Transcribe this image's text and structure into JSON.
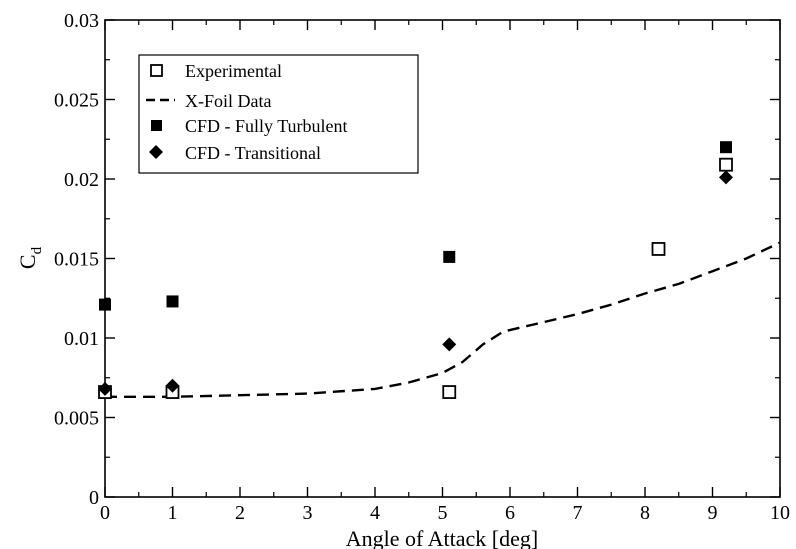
{
  "chart_data": {
    "type": "scatter",
    "title": "",
    "xlabel": "Angle of Attack [deg]",
    "ylabel": {
      "main": "C",
      "sub": "d"
    },
    "xlim": [
      0,
      10
    ],
    "ylim": [
      0,
      0.03
    ],
    "x_ticks": [
      "0",
      "1",
      "2",
      "3",
      "4",
      "5",
      "6",
      "7",
      "8",
      "9",
      "10"
    ],
    "y_ticks": [
      "0",
      "0.005",
      "0.01",
      "0.015",
      "0.02",
      "0.025",
      "0.03"
    ],
    "grid": false,
    "legend_position": "top-left",
    "series": [
      {
        "name": "Experimental",
        "marker": "open-square",
        "color": "#000000",
        "points": [
          [
            0,
            0.0066
          ],
          [
            1,
            0.0066
          ],
          [
            5.1,
            0.0066
          ],
          [
            8.2,
            0.0156
          ],
          [
            9.2,
            0.0209
          ]
        ]
      },
      {
        "name": "X-Foil Data",
        "marker": "dashed-line",
        "color": "#000000",
        "points": [
          [
            0,
            0.0063
          ],
          [
            1,
            0.0063
          ],
          [
            2,
            0.0064
          ],
          [
            3,
            0.0065
          ],
          [
            4,
            0.0068
          ],
          [
            4.5,
            0.0072
          ],
          [
            5,
            0.0078
          ],
          [
            5.3,
            0.0085
          ],
          [
            5.6,
            0.0096
          ],
          [
            5.9,
            0.0104
          ],
          [
            6.5,
            0.011
          ],
          [
            7,
            0.0115
          ],
          [
            7.5,
            0.0121
          ],
          [
            8,
            0.0128
          ],
          [
            8.5,
            0.0134
          ],
          [
            9,
            0.0142
          ],
          [
            9.5,
            0.015
          ],
          [
            10,
            0.016
          ]
        ]
      },
      {
        "name": "CFD - Fully Turbulent",
        "marker": "filled-square",
        "color": "#000000",
        "points": [
          [
            0,
            0.0121
          ],
          [
            1,
            0.0123
          ],
          [
            5.1,
            0.0151
          ],
          [
            9.2,
            0.022
          ]
        ]
      },
      {
        "name": "CFD - Transitional",
        "marker": "filled-diamond",
        "color": "#000000",
        "points": [
          [
            0,
            0.0068
          ],
          [
            1,
            0.007
          ],
          [
            5.1,
            0.0096
          ],
          [
            9.2,
            0.0201
          ]
        ]
      }
    ]
  }
}
